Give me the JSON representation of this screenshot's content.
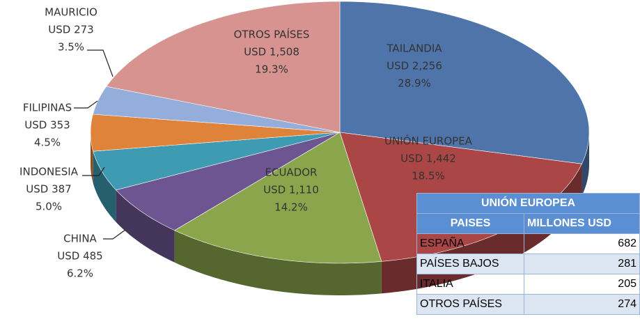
{
  "chart_data": {
    "type": "pie3d",
    "categories": [
      "TAILANDIA",
      "UNIÓN EUROPEA",
      "ECUADOR",
      "CHINA",
      "INDONESIA",
      "FILIPINAS",
      "MAURICIO",
      "OTROS PAÍSES"
    ],
    "values": [
      2256,
      1442,
      1110,
      485,
      387,
      353,
      273,
      1508
    ],
    "value_labels": [
      "USD 2,256",
      "USD 1,442",
      "USD 1,110",
      "USD 485",
      "USD 387",
      "USD 353",
      "USD 273",
      "USD 1,508"
    ],
    "percentages": [
      28.9,
      18.5,
      14.2,
      6.2,
      5.0,
      4.5,
      3.5,
      19.3
    ],
    "percentage_labels": [
      "28.9%",
      "18.5%",
      "14.2%",
      "6.2%",
      "5.0%",
      "4.5%",
      "3.5%",
      "19.3%"
    ],
    "colors": [
      "#4e74aa",
      "#aa4645",
      "#8aa54c",
      "#6d5592",
      "#3e9bb2",
      "#df833b",
      "#95addb",
      "#d79390"
    ]
  },
  "table": {
    "title": "UNIÓN EUROPEA",
    "headers": [
      "PAISES",
      "MILLONES USD"
    ],
    "rows": [
      [
        "ESPAÑA",
        "682"
      ],
      [
        "PAÍSES BAJOS",
        "281"
      ],
      [
        "ITALIA",
        "205"
      ],
      [
        "OTROS PAÍSES",
        "274"
      ]
    ]
  }
}
